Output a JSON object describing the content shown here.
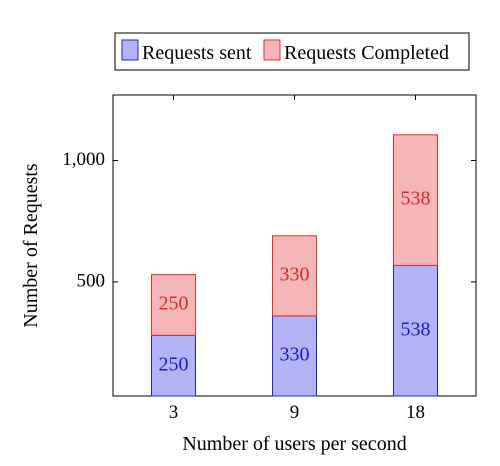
{
  "chart_data": {
    "type": "bar",
    "stacked": true,
    "title": "",
    "xlabel": "Number of users per second",
    "ylabel": "Number of Requests",
    "categories": [
      "3",
      "9",
      "18"
    ],
    "series": [
      {
        "name": "Requests sent",
        "values": [
          250,
          330,
          538
        ],
        "labels": [
          "250",
          "330",
          "538"
        ],
        "fill": "#b3b3f5",
        "stroke": "#2020e0",
        "label_color": "#1a1ad6"
      },
      {
        "name": "Requests Completed",
        "values": [
          250,
          330,
          538
        ],
        "labels": [
          "250",
          "330",
          "538"
        ],
        "fill": "#f4b6b6",
        "stroke": "#e03030",
        "label_color": "#e02a2a"
      }
    ],
    "ylim": [
      30,
      1270
    ],
    "yticks": [
      500,
      1000
    ],
    "ytick_labels": [
      "500",
      "1,000"
    ],
    "grid": false,
    "legend": "top"
  }
}
